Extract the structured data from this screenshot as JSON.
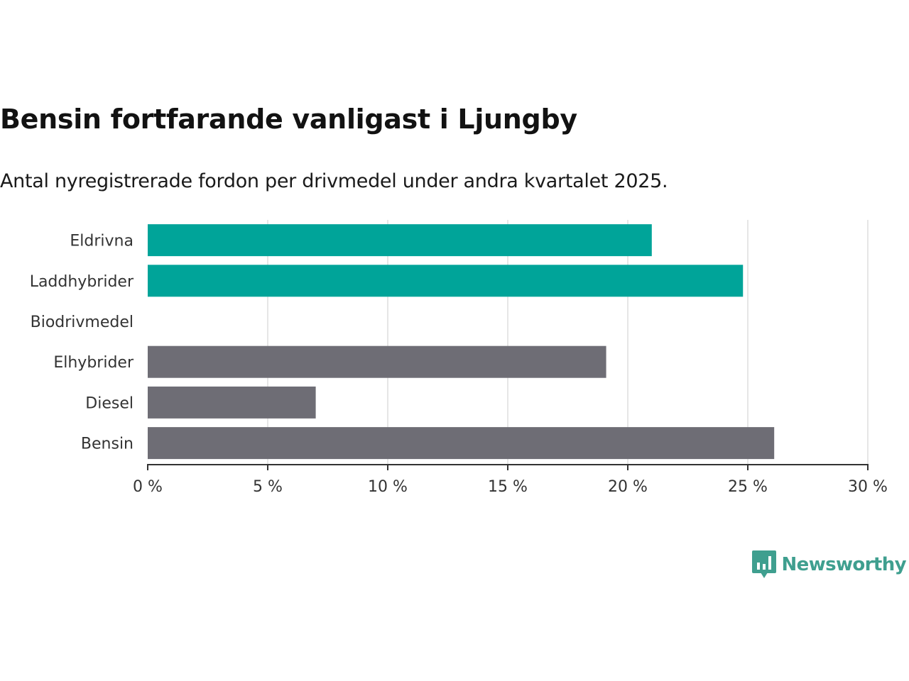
{
  "header": {
    "title": "Bensin fortfarande vanligast i Ljungby",
    "subtitle": "Antal nyregistrerade fordon per drivmedel under andra kvartalet 2025."
  },
  "brand": {
    "name": "Newsworthy",
    "icon": "bar-chart-speech-bubble-icon",
    "color": "#3f9f8f"
  },
  "colors": {
    "highlight": "#00a499",
    "default": "#6e6d75",
    "grid": "#dddddd",
    "axis": "#333333"
  },
  "chart_data": {
    "type": "bar",
    "orientation": "horizontal",
    "title": "Bensin fortfarande vanligast i Ljungby",
    "subtitle": "Antal nyregistrerade fordon per drivmedel under andra kvartalet 2025.",
    "categories": [
      "Eldrivna",
      "Laddhybrider",
      "Biodrivmedel",
      "Elhybrider",
      "Diesel",
      "Bensin"
    ],
    "values": [
      21.0,
      24.8,
      0,
      19.1,
      7.0,
      26.1
    ],
    "bar_colors": [
      "#00a499",
      "#00a499",
      "#00a499",
      "#6e6d75",
      "#6e6d75",
      "#6e6d75"
    ],
    "xlim": [
      0,
      30
    ],
    "xticks": [
      0,
      5,
      10,
      15,
      20,
      25,
      30
    ],
    "xtick_labels": [
      "0 %",
      "5 %",
      "10 %",
      "15 %",
      "20 %",
      "25 %",
      "30 %"
    ],
    "xlabel": "",
    "ylabel": "",
    "grid": true,
    "legend": "none"
  }
}
